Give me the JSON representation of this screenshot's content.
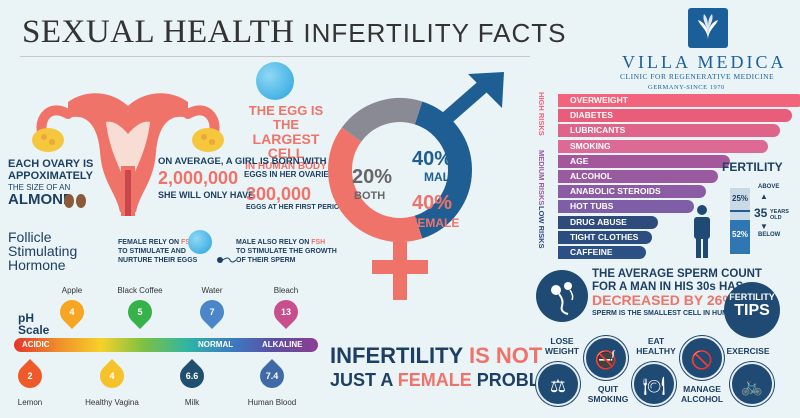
{
  "header": {
    "title_serif": "SEXUAL HEALTH",
    "title_sans": "INFERTILITY FACTS"
  },
  "logo": {
    "name": "VILLA MEDICA",
    "tagline": "CLINIC FOR REGENERATIVE MEDICINE",
    "tagline2": "GERMANY-SINCE 1970"
  },
  "egg": {
    "line1": "THE EGG IS THE",
    "line2": "LARGEST CELL",
    "line3": "IN HUMAN BODY"
  },
  "ovary": {
    "line1": "EACH OVARY IS",
    "line2": "APPOXIMATELY",
    "line3": "THE SIZE OF AN",
    "line4": "ALMOND"
  },
  "born": {
    "line1": "ON AVERAGE, A GIRL IS BORN WITH",
    "number": "2,000,000",
    "suffix1": "EGGS IN HER OVARIES",
    "suffix2": "SHE WILL ONLY HAVE",
    "number2": "300,000",
    "suffix3": "EGGS AT HER FIRST PERIOD"
  },
  "fsh": {
    "w1": "Follicle",
    "w2": "Stimulating",
    "w3": "Hormone",
    "female_line1": "FEMALE RELY ON",
    "female_fsh": "FSH",
    "female_line2": "TO STIMULATE AND",
    "female_line3": "NURTURE THEIR EGGS",
    "male_line1": "MALE ALSO RELY ON",
    "male_fsh": "FSH",
    "male_line2": "TO STIMULATE THE GROWTH",
    "male_line3": "OF THEIR SPERM"
  },
  "ph": {
    "title1": "pH",
    "title2": "Scale",
    "acidic": "ACIDIC",
    "normal": "NORMAL",
    "alkaline": "ALKALINE",
    "top": [
      {
        "label": "Apple",
        "value": "4",
        "color": "#f6a623"
      },
      {
        "label": "Black Coffee",
        "value": "5",
        "color": "#36b24a"
      },
      {
        "label": "Water",
        "value": "7",
        "color": "#4a86c8"
      },
      {
        "label": "Bleach",
        "value": "13",
        "color": "#c84e8e"
      }
    ],
    "bottom": [
      {
        "label": "Lemon",
        "value": "2",
        "color": "#ef5a2a"
      },
      {
        "label": "Healthy Vagina",
        "value": "4",
        "color": "#f6c22a"
      },
      {
        "label": "Milk",
        "value": "6.6",
        "color": "#1e4f6e"
      },
      {
        "label": "Human Blood",
        "value": "7.4",
        "color": "#3f6aa6"
      }
    ]
  },
  "gender_chart": {
    "male_pct": "40%",
    "male_label": "MALE",
    "female_pct": "40%",
    "female_label": "FEMALE",
    "both_pct": "20%",
    "both_label": "BOTH",
    "values": {
      "male": 40,
      "female": 40,
      "both": 20
    },
    "colors": {
      "male": "#1f5e92",
      "female": "#f0736a",
      "both": "#8a8a95"
    }
  },
  "slogan": {
    "w1": "INFERTILITY",
    "w2": "IS NOT",
    "w3": "JUST A",
    "w4": "FEMALE",
    "w5": "PROBLEM"
  },
  "risks": {
    "high_label": "HIGH RISKS",
    "medium_label": "MEDIUM RISKS",
    "low_label": "LOW RISKS",
    "items": [
      {
        "label": "OVERWEIGHT",
        "color": "#f2637c",
        "level": "high"
      },
      {
        "label": "DIABETES",
        "color": "#e85d7a",
        "level": "high"
      },
      {
        "label": "LUBRICANTS",
        "color": "#e0638a",
        "level": "high"
      },
      {
        "label": "SMOKING",
        "color": "#dc6a95",
        "level": "high"
      },
      {
        "label": "AGE",
        "color": "#a4579b",
        "level": "medium"
      },
      {
        "label": "ALCOHOL",
        "color": "#9a5aa0",
        "level": "medium"
      },
      {
        "label": "ANABOLIC STEROIDS",
        "color": "#8b5ca4",
        "level": "medium"
      },
      {
        "label": "HOT TUBS",
        "color": "#7e5ea6",
        "level": "medium"
      },
      {
        "label": "DRUG ABUSE",
        "color": "#2e4b7c",
        "level": "low"
      },
      {
        "label": "TIGHT CLOTHES",
        "color": "#2c4d80",
        "level": "low"
      },
      {
        "label": "CAFFEINE",
        "color": "#2a5086",
        "level": "low"
      }
    ]
  },
  "fertility": {
    "title": "FERTILITY",
    "above": "ABOVE",
    "age": "35",
    "years_old": "YEARS OLD",
    "below": "BELOW",
    "pct_above": "25%",
    "pct_below": "52%",
    "fill_above": 0.25,
    "fill_below": 0.52
  },
  "sperm": {
    "line1": "THE AVERAGE SPERM COUNT",
    "line2": "FOR A MAN IN HIS 30s HAS",
    "line3": "DECREASED BY 26%",
    "line4": "SPERM IS THE SMALLEST CELL IN HUMAN BODY"
  },
  "tips": {
    "title1": "FERTILITY",
    "title2": "TIPS",
    "items": [
      {
        "label": "LOSE WEIGHT",
        "icon": "scale-icon"
      },
      {
        "label": "QUIT SMOKING",
        "icon": "no-smoking-icon"
      },
      {
        "label": "EAT HEALTHY",
        "icon": "food-icon"
      },
      {
        "label": "MANAGE ALCOHOL",
        "icon": "no-alcohol-icon"
      },
      {
        "label": "EXERCISE",
        "icon": "bike-icon"
      }
    ]
  }
}
